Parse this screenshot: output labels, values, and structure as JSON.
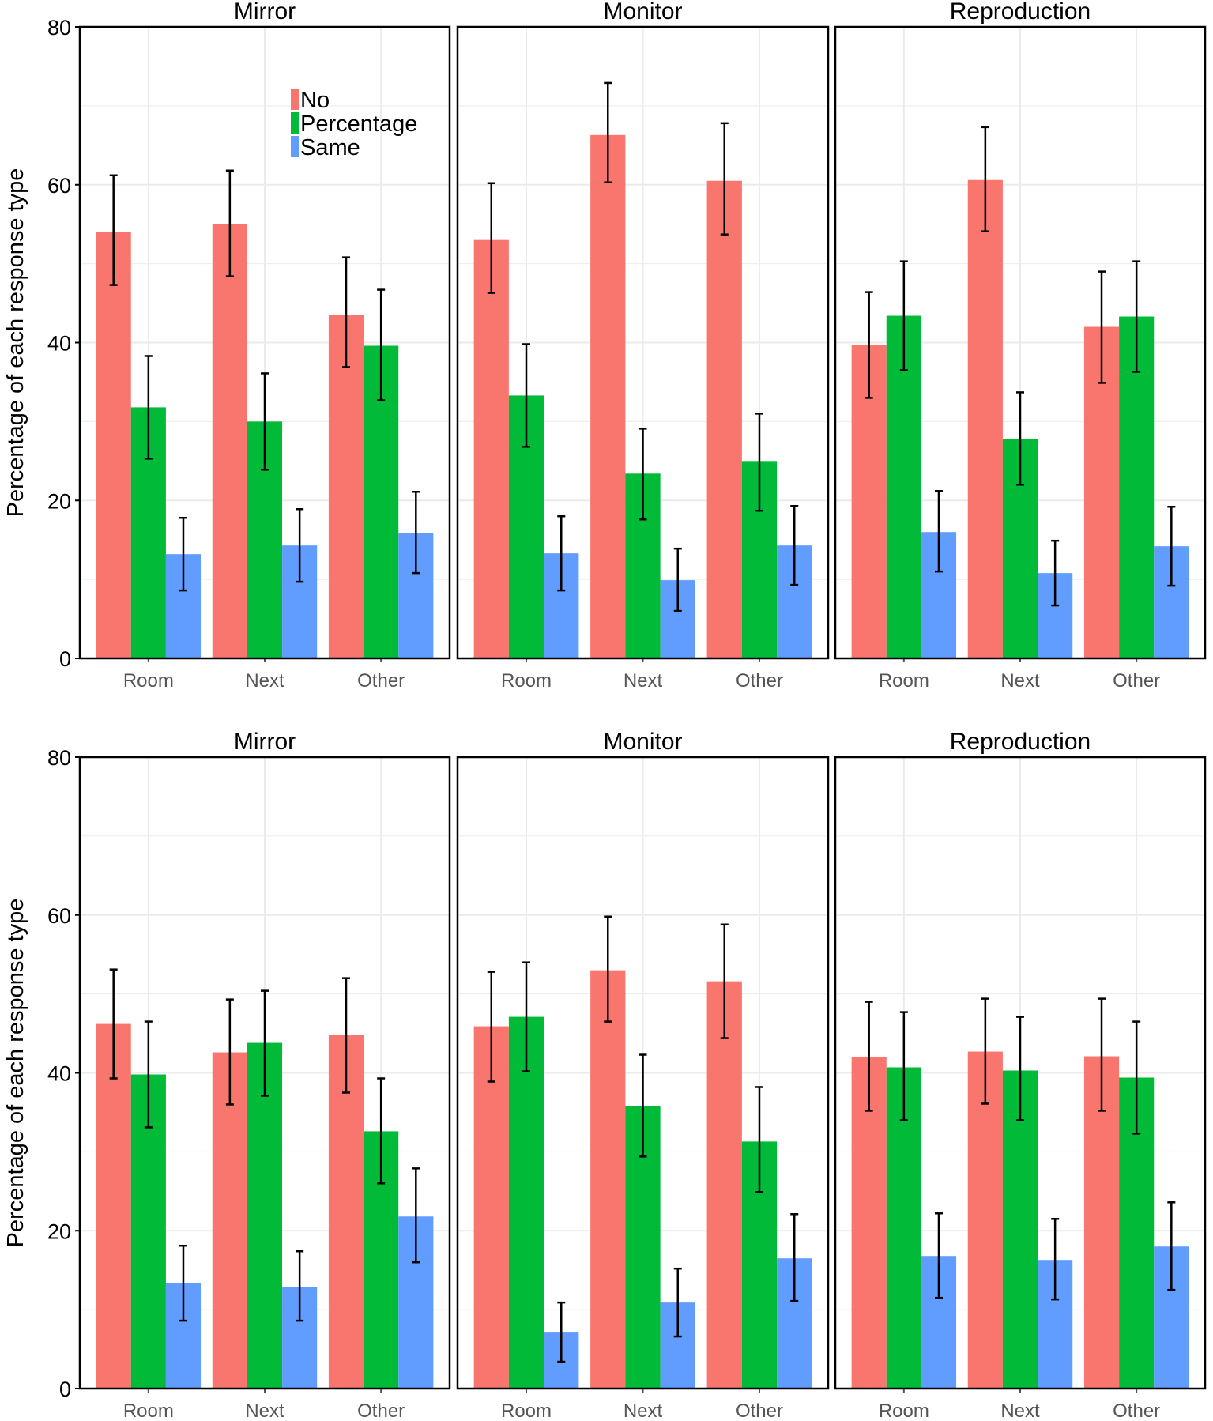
{
  "chart_data": [
    {
      "type": "bar",
      "ylabel": "Percentage of each response type",
      "yticks": [
        0,
        20,
        40,
        60,
        80
      ],
      "ylim": [
        0,
        80
      ],
      "categories": [
        "Room",
        "Next",
        "Other"
      ],
      "legend": {
        "placement": "top-left of first panel",
        "entries": [
          "No",
          "Percentage",
          "Same"
        ]
      },
      "panels": [
        {
          "title": "Mirror",
          "series": [
            {
              "name": "No",
              "color": "#f8766d",
              "values": [
                54,
                55,
                43.5
              ],
              "err_low": [
                47.3,
                48.4,
                36.9
              ],
              "err_high": [
                61.2,
                61.8,
                50.8
              ]
            },
            {
              "name": "Percentage",
              "color": "#00ba38",
              "values": [
                31.8,
                30,
                39.6
              ],
              "err_low": [
                25.3,
                23.9,
                32.7
              ],
              "err_high": [
                38.3,
                36.1,
                46.7
              ]
            },
            {
              "name": "Same",
              "color": "#619cff",
              "values": [
                13.2,
                14.3,
                15.9
              ],
              "err_low": [
                8.6,
                9.7,
                10.8
              ],
              "err_high": [
                17.8,
                18.9,
                21.1
              ]
            }
          ]
        },
        {
          "title": "Monitor",
          "series": [
            {
              "name": "No",
              "color": "#f8766d",
              "values": [
                53,
                66.3,
                60.5
              ],
              "err_low": [
                46.3,
                60.3,
                53.7
              ],
              "err_high": [
                60.2,
                72.9,
                67.8
              ]
            },
            {
              "name": "Percentage",
              "color": "#00ba38",
              "values": [
                33.3,
                23.4,
                25
              ],
              "err_low": [
                26.8,
                17.6,
                18.7
              ],
              "err_high": [
                39.8,
                29.1,
                31
              ]
            },
            {
              "name": "Same",
              "color": "#619cff",
              "values": [
                13.3,
                9.9,
                14.3
              ],
              "err_low": [
                8.6,
                6,
                9.3
              ],
              "err_high": [
                18,
                13.9,
                19.3
              ]
            }
          ]
        },
        {
          "title": "Reproduction",
          "series": [
            {
              "name": "No",
              "color": "#f8766d",
              "values": [
                39.7,
                60.6,
                42
              ],
              "err_low": [
                33,
                54.1,
                34.9
              ],
              "err_high": [
                46.4,
                67.3,
                49
              ]
            },
            {
              "name": "Percentage",
              "color": "#00ba38",
              "values": [
                43.4,
                27.8,
                43.3
              ],
              "err_low": [
                36.5,
                22,
                36.3
              ],
              "err_high": [
                50.3,
                33.7,
                50.3
              ]
            },
            {
              "name": "Same",
              "color": "#619cff",
              "values": [
                16,
                10.8,
                14.2
              ],
              "err_low": [
                11,
                6.7,
                9.2
              ],
              "err_high": [
                21.2,
                14.9,
                19.2
              ]
            }
          ]
        }
      ]
    },
    {
      "type": "bar",
      "ylabel": "Percentage of each response type",
      "yticks": [
        0,
        20,
        40,
        60,
        80
      ],
      "ylim": [
        0,
        80
      ],
      "categories": [
        "Room",
        "Next",
        "Other"
      ],
      "panels": [
        {
          "title": "Mirror",
          "series": [
            {
              "name": "No",
              "color": "#f8766d",
              "values": [
                46.2,
                42.6,
                44.8
              ],
              "err_low": [
                39.3,
                36,
                37.5
              ],
              "err_high": [
                53.1,
                49.3,
                52
              ]
            },
            {
              "name": "Percentage",
              "color": "#00ba38",
              "values": [
                39.8,
                43.8,
                32.6
              ],
              "err_low": [
                33.1,
                37.1,
                26
              ],
              "err_high": [
                46.5,
                50.4,
                39.3
              ]
            },
            {
              "name": "Same",
              "color": "#619cff",
              "values": [
                13.4,
                12.9,
                21.8
              ],
              "err_low": [
                8.6,
                8.6,
                16
              ],
              "err_high": [
                18.1,
                17.4,
                27.9
              ]
            }
          ]
        },
        {
          "title": "Monitor",
          "series": [
            {
              "name": "No",
              "color": "#f8766d",
              "values": [
                45.9,
                53,
                51.6
              ],
              "err_low": [
                38.9,
                46.5,
                44.4
              ],
              "err_high": [
                52.8,
                59.8,
                58.8
              ]
            },
            {
              "name": "Percentage",
              "color": "#00ba38",
              "values": [
                47.1,
                35.8,
                31.3
              ],
              "err_low": [
                40.2,
                29.4,
                24.9
              ],
              "err_high": [
                54,
                42.3,
                38.2
              ]
            },
            {
              "name": "Same",
              "color": "#619cff",
              "values": [
                7.1,
                10.9,
                16.5
              ],
              "err_low": [
                3.4,
                6.6,
                11.1
              ],
              "err_high": [
                10.9,
                15.2,
                22.1
              ]
            }
          ]
        },
        {
          "title": "Reproduction",
          "series": [
            {
              "name": "No",
              "color": "#f8766d",
              "values": [
                42,
                42.7,
                42.1
              ],
              "err_low": [
                35.2,
                36.1,
                35.2
              ],
              "err_high": [
                49,
                49.4,
                49.4
              ]
            },
            {
              "name": "Percentage",
              "color": "#00ba38",
              "values": [
                40.7,
                40.3,
                39.4
              ],
              "err_low": [
                34,
                34,
                32.3
              ],
              "err_high": [
                47.7,
                47.1,
                46.5
              ]
            },
            {
              "name": "Same",
              "color": "#619cff",
              "values": [
                16.8,
                16.3,
                18
              ],
              "err_low": [
                11.5,
                11.3,
                12.5
              ],
              "err_high": [
                22.2,
                21.5,
                23.6
              ]
            }
          ]
        }
      ]
    }
  ]
}
